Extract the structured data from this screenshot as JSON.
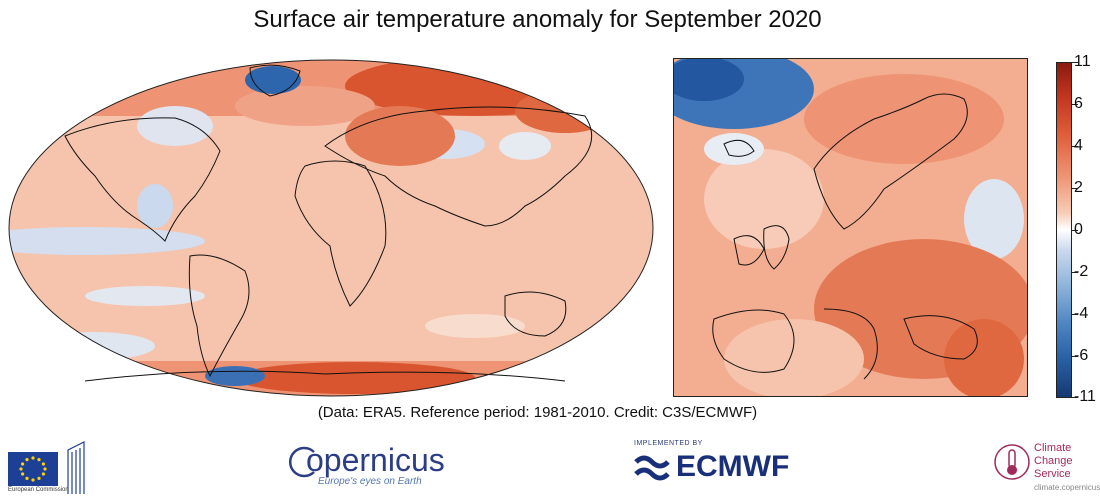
{
  "title": "Surface air temperature anomaly for September 2020",
  "caption": "(Data: ERA5.  Reference period: 1981-2010.  Credit: C3S/ECMWF)",
  "colorbar": {
    "ticks": [
      "11",
      "6",
      "4",
      "2",
      "0",
      "-2",
      "-4",
      "-6",
      "-11"
    ],
    "colors": [
      "#8b1a10",
      "#e0603c",
      "#ffffff",
      "#4f85c2",
      "#153a72"
    ]
  },
  "logos": {
    "eu_text": "European Commission",
    "copernicus_name": "opernicus",
    "copernicus_tagline": "Europe's eyes on Earth",
    "ecmwf_top": "IMPLEMENTED BY",
    "ecmwf_name": "ECMWF",
    "c3s_line1": "Climate",
    "c3s_line2": "Change Service",
    "c3s_line3": "climate.copernicus..."
  }
}
